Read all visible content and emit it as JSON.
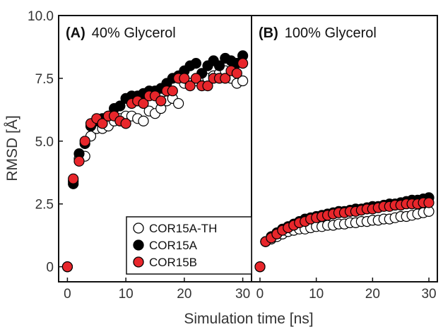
{
  "chart_data": {
    "type": "scatter",
    "ylabel": "RMSD [Å]",
    "xlabel": "Simulation time [ns]",
    "xlim": [
      -1.5,
      31.5
    ],
    "ylim": [
      -0.6,
      10.0
    ],
    "x_ticks": [
      "0",
      "10",
      "20",
      "30"
    ],
    "y_ticks": [
      "0",
      "2.5",
      "5.0",
      "7.5",
      "10.0"
    ],
    "legend": {
      "placement": "lower-right of panel A",
      "entries": [
        "COR15A-TH",
        "COR15A",
        "COR15B"
      ]
    },
    "series_styles": [
      {
        "name": "COR15A-TH",
        "fill": "#ffffff",
        "stroke": "#000000"
      },
      {
        "name": "COR15A",
        "fill": "#000000",
        "stroke": "#000000"
      },
      {
        "name": "COR15B",
        "fill": "#e8262b",
        "stroke": "#000000"
      }
    ],
    "panels": [
      {
        "letter": "(A)",
        "label": "40% Glycerol",
        "series": [
          {
            "name": "COR15A-TH",
            "x": [
              0,
              1,
              2,
              3,
              4,
              5,
              6,
              7,
              8,
              9,
              10,
              11,
              12,
              13,
              14,
              15,
              16,
              17,
              18,
              19,
              20,
              21,
              22,
              23,
              24,
              25,
              26,
              27,
              28,
              29,
              30
            ],
            "y": [
              0,
              3.4,
              4.3,
              4.4,
              5.2,
              5.5,
              5.5,
              5.6,
              5.8,
              5.9,
              6.0,
              6.0,
              5.9,
              5.8,
              6.2,
              6.1,
              6.3,
              6.6,
              6.7,
              6.5,
              7.3,
              7.3,
              7.4,
              7.6,
              7.5,
              7.6,
              7.7,
              7.8,
              7.5,
              7.3,
              7.4
            ]
          },
          {
            "name": "COR15A",
            "x": [
              0,
              1,
              2,
              3,
              4,
              5,
              6,
              7,
              8,
              9,
              10,
              11,
              12,
              13,
              14,
              15,
              16,
              17,
              18,
              19,
              20,
              21,
              22,
              23,
              24,
              25,
              26,
              27,
              28,
              29,
              30
            ],
            "y": [
              0,
              3.3,
              4.5,
              4.9,
              5.6,
              5.8,
              5.9,
              6.0,
              6.3,
              6.4,
              6.7,
              6.8,
              6.8,
              6.9,
              7.0,
              7.0,
              7.1,
              7.3,
              7.5,
              7.6,
              7.8,
              8.0,
              8.1,
              7.7,
              8.0,
              8.2,
              8.0,
              8.3,
              8.2,
              8.1,
              8.4
            ]
          },
          {
            "name": "COR15B",
            "x": [
              0,
              1,
              2,
              3,
              4,
              5,
              6,
              7,
              8,
              9,
              10,
              11,
              12,
              13,
              14,
              15,
              16,
              17,
              18,
              19,
              20,
              21,
              22,
              23,
              24,
              25,
              26,
              27,
              28,
              29,
              30
            ],
            "y": [
              0,
              3.5,
              4.2,
              5.0,
              5.7,
              5.9,
              5.7,
              6.0,
              6.0,
              5.8,
              5.7,
              6.5,
              6.6,
              6.5,
              6.8,
              6.8,
              6.6,
              7.0,
              7.0,
              7.5,
              7.5,
              7.2,
              7.5,
              7.2,
              7.2,
              7.5,
              7.5,
              7.5,
              7.8,
              7.7,
              8.1
            ]
          }
        ]
      },
      {
        "letter": "(B)",
        "label": "100% Glycerol",
        "series": [
          {
            "name": "COR15A-TH",
            "x": [
              0,
              1,
              2,
              3,
              4,
              5,
              6,
              7,
              8,
              9,
              10,
              11,
              12,
              13,
              14,
              15,
              16,
              17,
              18,
              19,
              20,
              21,
              22,
              23,
              24,
              25,
              26,
              27,
              28,
              29,
              30
            ],
            "y": [
              0,
              1.0,
              1.1,
              1.2,
              1.3,
              1.4,
              1.45,
              1.5,
              1.5,
              1.55,
              1.6,
              1.6,
              1.65,
              1.65,
              1.7,
              1.7,
              1.75,
              1.75,
              1.8,
              1.8,
              1.85,
              1.85,
              1.9,
              1.9,
              1.95,
              2.0,
              2.0,
              2.05,
              2.1,
              2.15,
              2.2
            ]
          },
          {
            "name": "COR15A",
            "x": [
              0,
              1,
              2,
              3,
              4,
              5,
              6,
              7,
              8,
              9,
              10,
              11,
              12,
              13,
              14,
              15,
              16,
              17,
              18,
              19,
              20,
              21,
              22,
              23,
              24,
              25,
              26,
              27,
              28,
              29,
              30
            ],
            "y": [
              0,
              1.0,
              1.2,
              1.35,
              1.5,
              1.6,
              1.7,
              1.8,
              1.9,
              1.95,
              2.0,
              2.05,
              2.1,
              2.15,
              2.2,
              2.2,
              2.25,
              2.3,
              2.3,
              2.35,
              2.4,
              2.4,
              2.45,
              2.5,
              2.5,
              2.55,
              2.6,
              2.65,
              2.65,
              2.7,
              2.75
            ]
          },
          {
            "name": "COR15B",
            "x": [
              0,
              1,
              2,
              3,
              4,
              5,
              6,
              7,
              8,
              9,
              10,
              11,
              12,
              13,
              14,
              15,
              16,
              17,
              18,
              19,
              20,
              21,
              22,
              23,
              24,
              25,
              26,
              27,
              28,
              29,
              30
            ],
            "y": [
              0,
              1.0,
              1.15,
              1.3,
              1.45,
              1.55,
              1.65,
              1.75,
              1.8,
              1.9,
              1.95,
              2.0,
              2.05,
              2.1,
              2.15,
              2.15,
              2.2,
              2.2,
              2.25,
              2.3,
              2.3,
              2.35,
              2.4,
              2.4,
              2.45,
              2.45,
              2.5,
              2.5,
              2.5,
              2.55,
              2.55
            ]
          }
        ]
      }
    ]
  }
}
